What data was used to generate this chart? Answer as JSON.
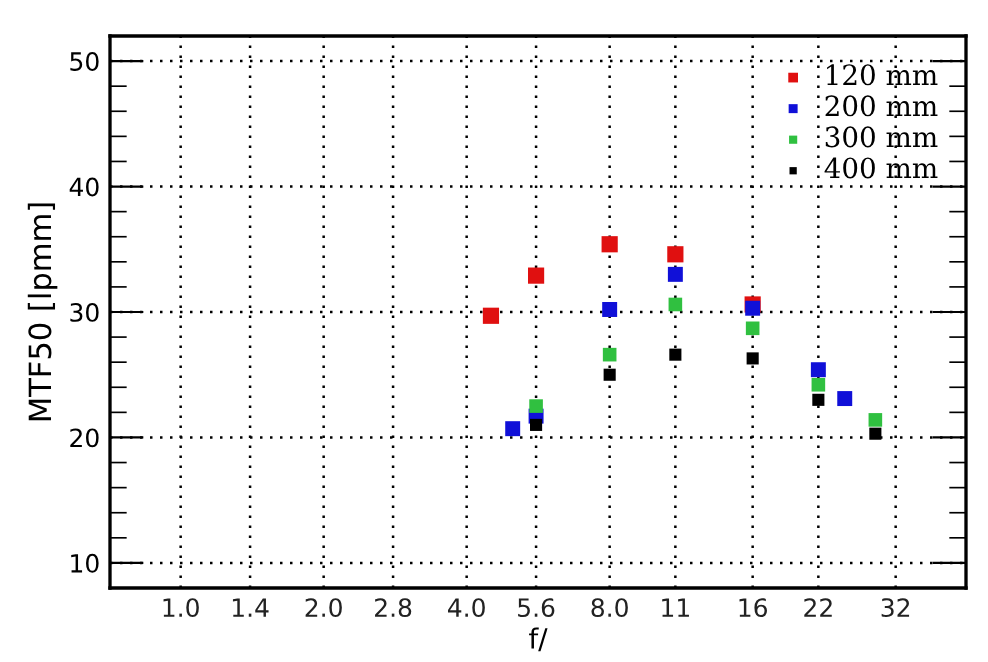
{
  "chart_data": {
    "type": "scatter",
    "xlabel": "f/",
    "ylabel": "MTF50 [lpmm]",
    "log": "x",
    "marker": "square",
    "grid": true,
    "legend": "top right",
    "xlim": [
      0.71,
      45
    ],
    "ylim": [
      8,
      52
    ],
    "xticks": [
      {
        "value": 1,
        "label": "1.0"
      },
      1.4,
      {
        "value": 2,
        "label": "2.0"
      },
      2.8,
      {
        "value": 4,
        "label": "4.0"
      },
      5.6,
      {
        "value": 8,
        "label": "8.0"
      },
      11,
      16,
      22,
      32
    ],
    "yticks": [
      10,
      20,
      30,
      40,
      50
    ],
    "series": [
      {
        "name": "120 mm",
        "color": "#e01010",
        "x": [
          4.5,
          5.6,
          8,
          11,
          16
        ],
        "values": [
          29.7,
          32.9,
          35.4,
          34.6,
          30.6
        ]
      },
      {
        "name": "200 mm",
        "color": "#1010d8",
        "x": [
          5.0,
          5.6,
          8,
          11,
          16,
          22,
          25
        ],
        "values": [
          20.7,
          21.7,
          30.2,
          33.0,
          30.3,
          25.4,
          23.1
        ]
      },
      {
        "name": "300 mm",
        "color": "#30c040",
        "x": [
          5.6,
          8,
          11,
          16,
          22,
          29
        ],
        "values": [
          22.5,
          26.6,
          30.6,
          28.7,
          24.2,
          21.4
        ]
      },
      {
        "name": "400 mm",
        "color": "#000000",
        "x": [
          5.6,
          8,
          11,
          16,
          22,
          29
        ],
        "values": [
          21.0,
          25.0,
          26.6,
          26.3,
          23.0,
          20.3
        ]
      }
    ]
  }
}
